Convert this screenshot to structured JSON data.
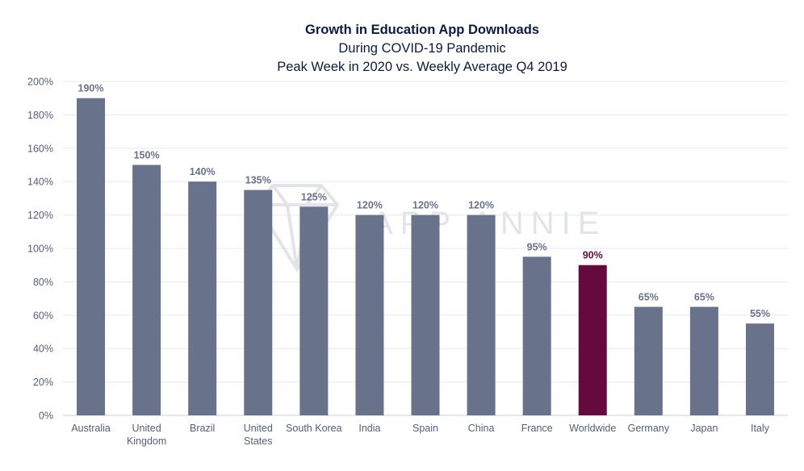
{
  "chart_data": {
    "type": "bar",
    "title": "Growth in Education App Downloads",
    "subtitle1": "During COVID-19 Pandemic",
    "subtitle2": "Peak Week in 2020 vs. Weekly Average Q4 2019",
    "categories": [
      [
        "Australia"
      ],
      [
        "United",
        "Kingdom"
      ],
      [
        "Brazil"
      ],
      [
        "United",
        "States"
      ],
      [
        "South Korea"
      ],
      [
        "India"
      ],
      [
        "Spain"
      ],
      [
        "China"
      ],
      [
        "France"
      ],
      [
        "Worldwide"
      ],
      [
        "Germany"
      ],
      [
        "Japan"
      ],
      [
        "Italy"
      ]
    ],
    "values": [
      190,
      150,
      140,
      135,
      125,
      120,
      120,
      120,
      95,
      90,
      65,
      65,
      55
    ],
    "value_labels": [
      "190%",
      "150%",
      "140%",
      "135%",
      "125%",
      "120%",
      "120%",
      "120%",
      "95%",
      "90%",
      "65%",
      "65%",
      "55%"
    ],
    "highlight_index": 9,
    "ylim": [
      0,
      200
    ],
    "yticks": [
      "0%",
      "20%",
      "40%",
      "60%",
      "80%",
      "100%",
      "120%",
      "140%",
      "160%",
      "180%",
      "200%"
    ],
    "xlabel": "",
    "ylabel": "",
    "grid": true,
    "colors": {
      "bar": "#68728b",
      "highlight": "#650a3f",
      "grid": "#e6e8ec",
      "label": "#68728b"
    }
  },
  "watermark": "APP ANNIE"
}
